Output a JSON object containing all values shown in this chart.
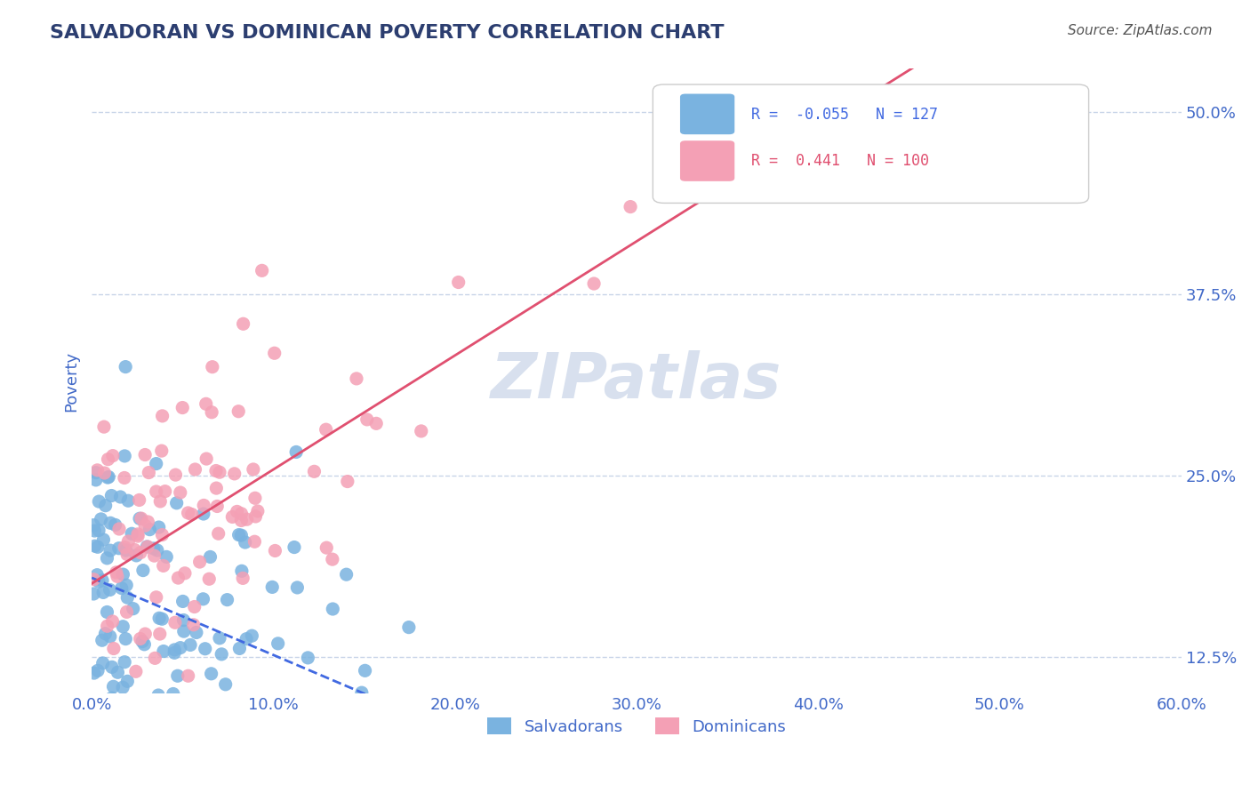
{
  "title": "SALVADORAN VS DOMINICAN POVERTY CORRELATION CHART",
  "source": "Source: ZipAtlas.com",
  "xlabel_bottom": "",
  "ylabel": "Poverty",
  "legend_salvadoran": "Salvadorans",
  "legend_dominican": "Dominicans",
  "R_salvadoran": -0.055,
  "N_salvadoran": 127,
  "R_dominican": 0.441,
  "N_dominican": 100,
  "xmin": 0.0,
  "xmax": 0.6,
  "ymin": 0.1,
  "ymax": 0.53,
  "yticks": [
    0.125,
    0.25,
    0.375,
    0.5
  ],
  "ytick_labels": [
    "12.5%",
    "25.0%",
    "37.5%",
    "50.0%"
  ],
  "xticks": [
    0.0,
    0.1,
    0.2,
    0.3,
    0.4,
    0.5,
    0.6
  ],
  "xtick_labels": [
    "0.0%",
    "10.0%",
    "20.0%",
    "30.0%",
    "40.0%",
    "50.0%",
    "60.0%"
  ],
  "color_salvadoran": "#7ab3e0",
  "color_dominican": "#f4a0b5",
  "line_color_salvadoran": "#4169e1",
  "line_color_dominican": "#e05070",
  "background_color": "#ffffff",
  "title_color": "#2c3e70",
  "axis_label_color": "#4169c8",
  "tick_label_color": "#4169c8",
  "watermark_text": "ZIPatlas",
  "watermark_color": "#c8d4e8",
  "grid_color": "#c8d4e8",
  "seed_salvadoran": 42,
  "seed_dominican": 123
}
